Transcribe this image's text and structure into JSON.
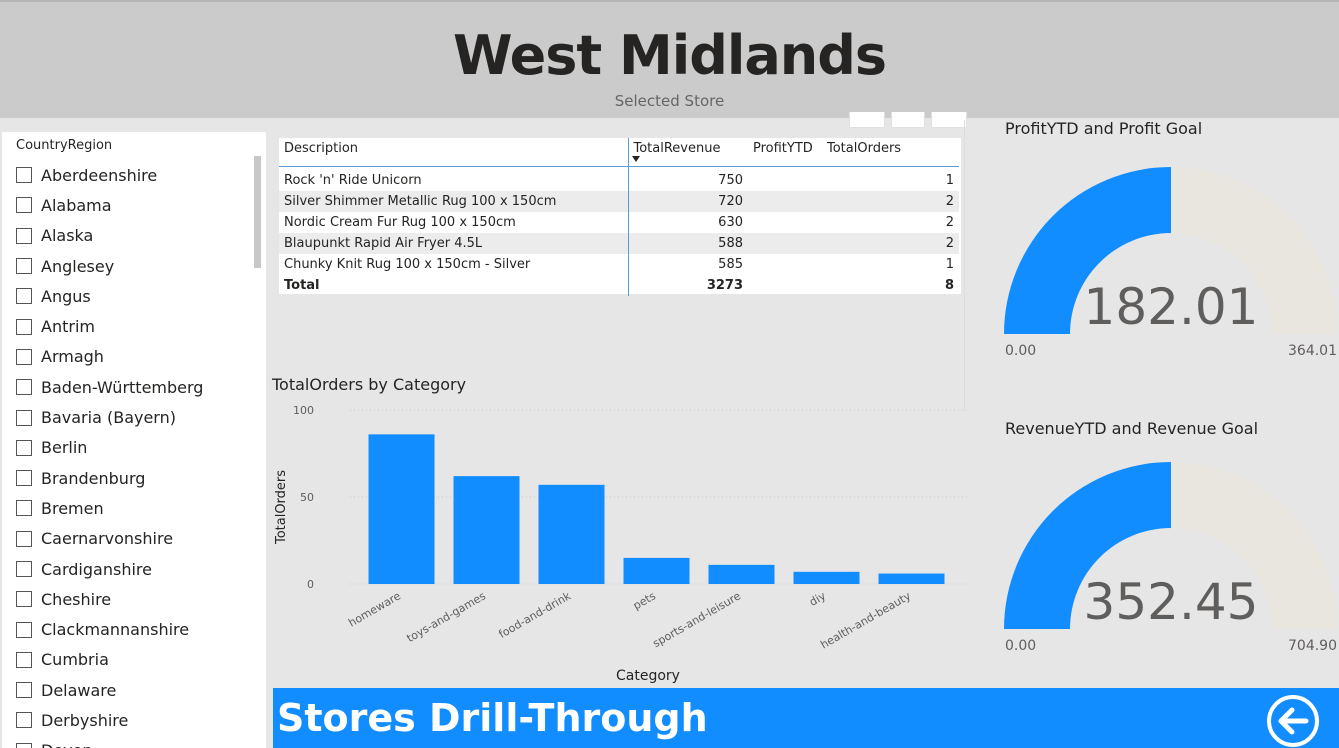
{
  "header": {
    "title": "West Midlands",
    "subtitle": "Selected Store"
  },
  "slicer": {
    "title": "CountryRegion",
    "items": [
      "Aberdeenshire",
      "Alabama",
      "Alaska",
      "Anglesey",
      "Angus",
      "Antrim",
      "Armagh",
      "Baden-Württemberg",
      "Bavaria (Bayern)",
      "Berlin",
      "Brandenburg",
      "Bremen",
      "Caernarvonshire",
      "Cardiganshire",
      "Cheshire",
      "Clackmannanshire",
      "Cumbria",
      "Delaware",
      "Derbyshire",
      "Devon"
    ]
  },
  "table": {
    "columns": [
      "Description",
      "TotalRevenue",
      "ProfitYTD",
      "TotalOrders"
    ],
    "rows": [
      [
        "Rock 'n' Ride Unicorn",
        "750",
        "",
        "1"
      ],
      [
        "Silver Shimmer Metallic Rug 100 x 150cm",
        "720",
        "",
        "2"
      ],
      [
        "Nordic Cream Fur Rug 100 x 150cm",
        "630",
        "",
        "2"
      ],
      [
        "Blaupunkt Rapid Air Fryer 4.5L",
        "588",
        "",
        "2"
      ],
      [
        "Chunky Knit Rug 100 x 150cm - Silver",
        "585",
        "",
        "1"
      ]
    ],
    "total": [
      "Total",
      "3273",
      "",
      "8"
    ]
  },
  "chart_data": {
    "type": "bar",
    "title": "TotalOrders by Category",
    "xlabel": "Category",
    "ylabel": "TotalOrders",
    "categories": [
      "homeware",
      "toys-and-games",
      "food-and-drink",
      "pets",
      "sports-and-leisure",
      "diy",
      "health-and-beauty"
    ],
    "values": [
      86,
      62,
      57,
      15,
      11,
      7,
      6
    ],
    "ylim": [
      0,
      100
    ],
    "yticks": [
      "0",
      "50",
      "100"
    ],
    "color": "#118dff",
    "grid": true
  },
  "gauges": [
    {
      "title": "ProfitYTD and Profit Goal",
      "value": "182.01",
      "min": "0.00",
      "max": "364.01",
      "fraction": 0.5
    },
    {
      "title": "RevenueYTD and Revenue Goal",
      "value": "352.45",
      "min": "0.00",
      "max": "704.90",
      "fraction": 0.5
    }
  ],
  "colors": {
    "accent": "#118dff",
    "gauge_track": "#e9e5df",
    "header_bg": "#cbcbcb"
  },
  "footer": {
    "title": "Stores Drill-Through",
    "back_icon": "back-arrow-icon"
  }
}
